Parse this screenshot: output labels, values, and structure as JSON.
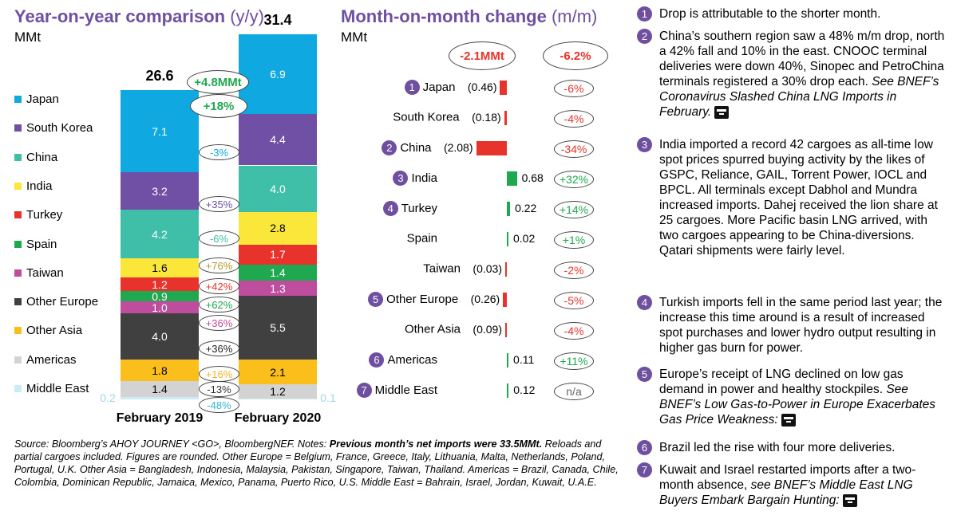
{
  "chart_data": [
    {
      "type": "bar",
      "title": "Year-on-year comparison",
      "title_unit": "(y/y)",
      "ylabel": "MMt",
      "categories": [
        "February 2019",
        "February 2020"
      ],
      "totals": [
        "26.6",
        "31.4"
      ],
      "total_change": "+4.8MMt",
      "total_change_pct": "+18%",
      "series": [
        {
          "name": "Middle East",
          "color": "#c9ecf6",
          "values": [
            0.2,
            0.1
          ],
          "labels": [
            "0.2",
            "0.1"
          ],
          "change": "-48%",
          "change_color": "#33b5d6"
        },
        {
          "name": "Americas",
          "color": "#d3d3d3",
          "values": [
            1.4,
            1.2
          ],
          "labels": [
            "1.4",
            "1.2"
          ],
          "change": "-13%",
          "change_color": "#333333"
        },
        {
          "name": "Other Asia",
          "color": "#fbbf1b",
          "values": [
            1.8,
            2.1
          ],
          "labels": [
            "1.8",
            "2.1"
          ],
          "change": "+16%",
          "change_color": "#f2b32a"
        },
        {
          "name": "Other Europe",
          "color": "#404040",
          "values": [
            4.0,
            5.5
          ],
          "labels": [
            "4.0",
            "5.5"
          ],
          "change": "+36%",
          "change_color": "#222222"
        },
        {
          "name": "Taiwan",
          "color": "#bf4d9d",
          "values": [
            1.0,
            1.3
          ],
          "labels": [
            "1.0",
            "1.3"
          ],
          "change": "+36%",
          "change_color": "#bf4d9d"
        },
        {
          "name": "Spain",
          "color": "#1fa84f",
          "values": [
            0.9,
            1.4
          ],
          "labels": [
            "0.9",
            "1.4"
          ],
          "change": "+62%",
          "change_color": "#1fa84f"
        },
        {
          "name": "Turkey",
          "color": "#e8332c",
          "values": [
            1.2,
            1.7
          ],
          "labels": [
            "1.2",
            "1.7"
          ],
          "change": "+42%",
          "change_color": "#e8332c"
        },
        {
          "name": "India",
          "color": "#fbe73a",
          "values": [
            1.6,
            2.8
          ],
          "labels": [
            "1.6",
            "2.8"
          ],
          "change": "+76%",
          "change_color": "#b8962c"
        },
        {
          "name": "China",
          "color": "#3fbfa8",
          "values": [
            4.2,
            4.0
          ],
          "labels": [
            "4.2",
            "4.0"
          ],
          "change": "-6%",
          "change_color": "#3fbfa8"
        },
        {
          "name": "South Korea",
          "color": "#7050a5",
          "values": [
            3.2,
            4.4
          ],
          "labels": [
            "3.2",
            "4.4"
          ],
          "change": "+35%",
          "change_color": "#7050a5"
        },
        {
          "name": "Japan",
          "color": "#0fa8e0",
          "values": [
            7.1,
            6.9
          ],
          "labels": [
            "7.1",
            "6.9"
          ],
          "change": "-3%",
          "change_color": "#0fa8e0"
        }
      ]
    },
    {
      "type": "bar",
      "orientation": "horizontal",
      "title": "Month-on-month change",
      "title_unit": "(m/m)",
      "xlabel": "MMt",
      "total_change": "-2.1MMt",
      "total_change_pct": "-6.2%",
      "rows": [
        {
          "label": "Japan",
          "note": "1",
          "value": -0.46,
          "value_label": "(0.46)",
          "pct": "-6%"
        },
        {
          "label": "South Korea",
          "note": "",
          "value": -0.18,
          "value_label": "(0.18)",
          "pct": "-4%"
        },
        {
          "label": "China",
          "note": "2",
          "value": -2.08,
          "value_label": "(2.08)",
          "pct": "-34%"
        },
        {
          "label": "India",
          "note": "3",
          "value": 0.68,
          "value_label": "0.68",
          "pct": "+32%"
        },
        {
          "label": "Turkey",
          "note": "4",
          "value": 0.22,
          "value_label": "0.22",
          "pct": "+14%"
        },
        {
          "label": "Spain",
          "note": "",
          "value": 0.02,
          "value_label": "0.02",
          "pct": "+1%"
        },
        {
          "label": "Taiwan",
          "note": "",
          "value": -0.03,
          "value_label": "(0.03)",
          "pct": "-2%"
        },
        {
          "label": "Other Europe",
          "note": "5",
          "value": -0.26,
          "value_label": "(0.26)",
          "pct": "-5%"
        },
        {
          "label": "Other Asia",
          "note": "",
          "value": -0.09,
          "value_label": "(0.09)",
          "pct": "-4%"
        },
        {
          "label": "Americas",
          "note": "6",
          "value": 0.11,
          "value_label": "0.11",
          "pct": "+11%"
        },
        {
          "label": "Middle East",
          "note": "7",
          "value": 0.12,
          "value_label": "0.12",
          "pct": "n/a"
        }
      ]
    }
  ],
  "colors": {
    "accent": "#6e4fa0",
    "negative": "#e8332c",
    "positive": "#1fa84f",
    "na": "#666666"
  },
  "notes": [
    {
      "num": "1",
      "text": "Drop is attributable to the shorter month.",
      "italic": "",
      "icon": false,
      "text_after": ""
    },
    {
      "num": "2",
      "text": "China’s southern region saw a 48% m/m drop, north a 42% fall and 10% in the east. CNOOC terminal deliveries were down 40%, Sinopec and PetroChina terminals registered a 30% drop each. ",
      "italic": "See BNEF’s Coronavirus Slashed China LNG Imports in February.",
      "icon": true,
      "text_after": ""
    },
    {
      "num": "3",
      "text": "India imported a record 42 cargoes as all-time low spot prices spurred buying activity by the likes of GSPC, Reliance, GAIL, Torrent Power, IOCL and BPCL. All terminals except Dabhol and Mundra increased imports. Dahej received the lion share at 25 cargoes. More Pacific basin LNG arrived, with two cargoes appearing to be China-diversions. Qatari shipments were fairly level.",
      "italic": "",
      "icon": false,
      "text_after": ""
    },
    {
      "num": "4",
      "text": "Turkish imports fell in the same period last year; the increase this time around is a result of increased spot purchases and lower hydro output resulting in higher gas burn for power.",
      "italic": "",
      "icon": false,
      "text_after": ""
    },
    {
      "num": "5",
      "text": "Europe’s receipt of LNG declined on low gas demand in power and healthy stockpiles. ",
      "italic": "See BNEF’s Low Gas-to-Power in Europe Exacerbates Gas Price Weakness:",
      "icon": true,
      "text_after": ""
    },
    {
      "num": "6",
      "text": "Brazil led the rise with four more deliveries.",
      "italic": "",
      "icon": false,
      "text_after": ""
    },
    {
      "num": "7",
      "text": "Kuwait and Israel restarted imports after a two-month absence, ",
      "italic": "see BNEF’s Middle East LNG Buyers Embark Bargain Hunting:",
      "icon": true,
      "text_after": ""
    }
  ],
  "source": {
    "prefix": "Source: Bloomberg’s AHOY JOURNEY <GO>, BloombergNEF. Notes: ",
    "bold": "Previous month’s net imports were 33.5MMt.",
    "rest": " Reloads and partial cargoes included. Figures are rounded. Other Europe = Belgium, France, Greece, Italy, Lithuania, Malta, Netherlands, Poland, Portugal, U.K. Other Asia = Bangladesh, Indonesia, Malaysia, Pakistan, Singapore, Taiwan, Thailand. Americas = Brazil, Canada, Chile, Colombia, Dominican Republic, Jamaica, Mexico, Panama, Puerto Rico, U.S. Middle East = Bahrain, Israel, Jordan, Kuwait, U.A.E."
  }
}
